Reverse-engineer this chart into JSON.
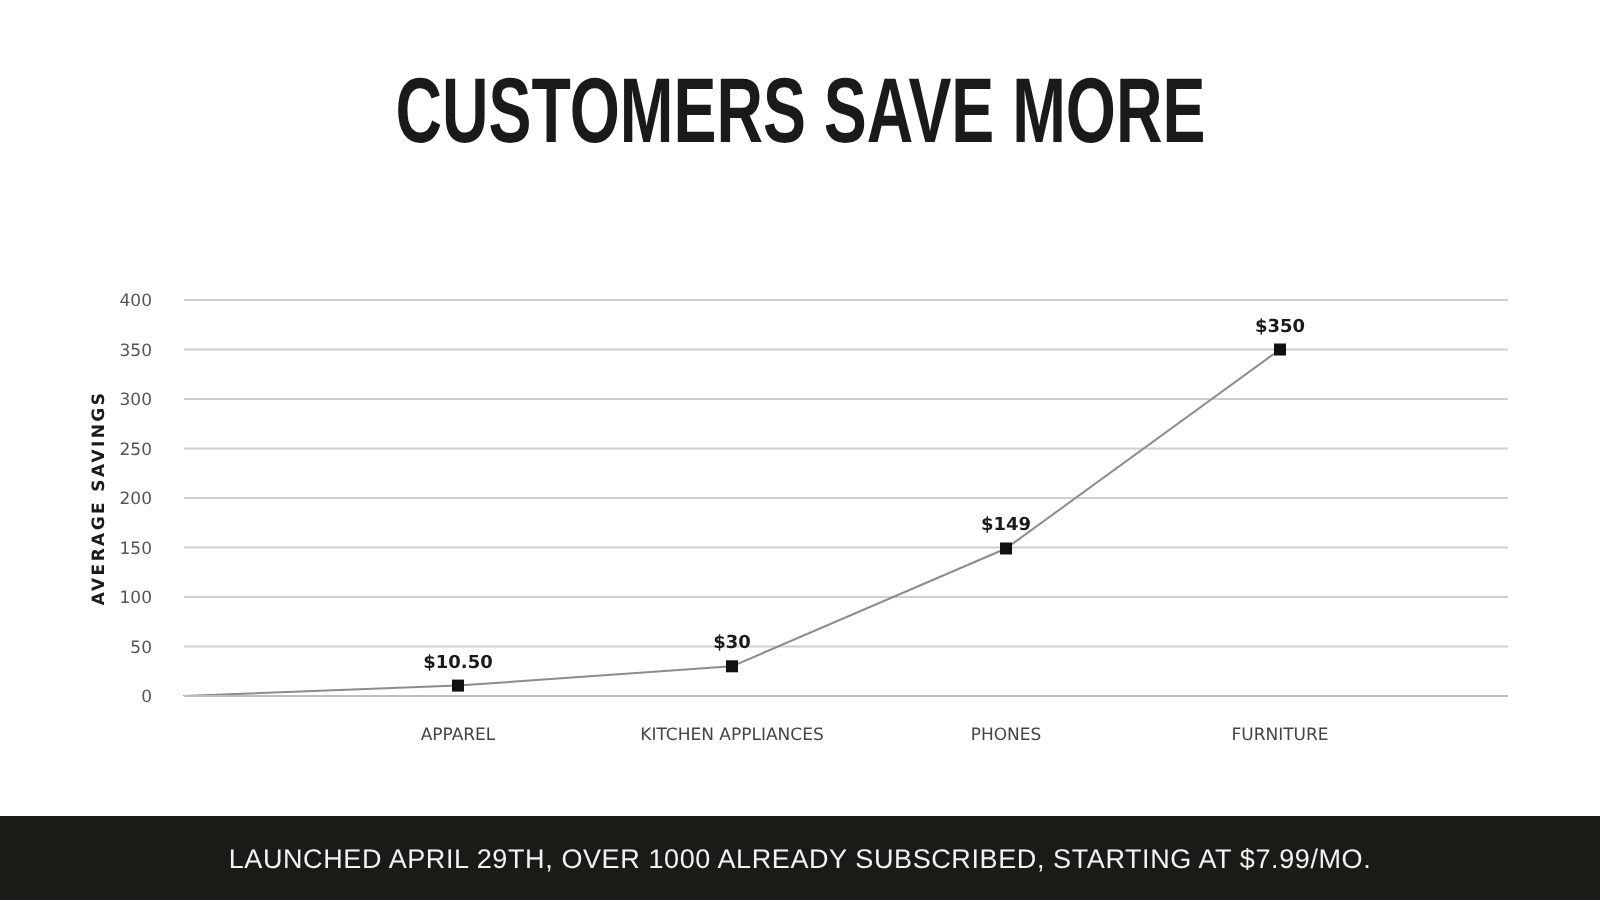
{
  "chart_data": {
    "type": "line",
    "title": "CUSTOMERS SAVE MORE",
    "ylabel": "AVERAGE SAVINGS",
    "annotations": [
      "LAUNCHED APRIL 29TH, OVER 1000 ALREADY SUBSCRIBED, STARTING AT $7.99/MO."
    ],
    "categories": [
      null,
      "APPAREL",
      "KITCHEN APPLIANCES",
      "PHONES",
      "FURNITURE"
    ],
    "series": [
      {
        "color": "#8c8c8c",
        "values": [
          0,
          10.5,
          30,
          149,
          350
        ],
        "value_labels": [
          null,
          "$10.50",
          "$30",
          "$149",
          "$350"
        ]
      }
    ],
    "ylim": [
      0,
      400
    ],
    "yticks": [
      0,
      50,
      100,
      150,
      200,
      250,
      300,
      350,
      400
    ],
    "grid": "y",
    "marker": "square",
    "line_style": "solid"
  }
}
